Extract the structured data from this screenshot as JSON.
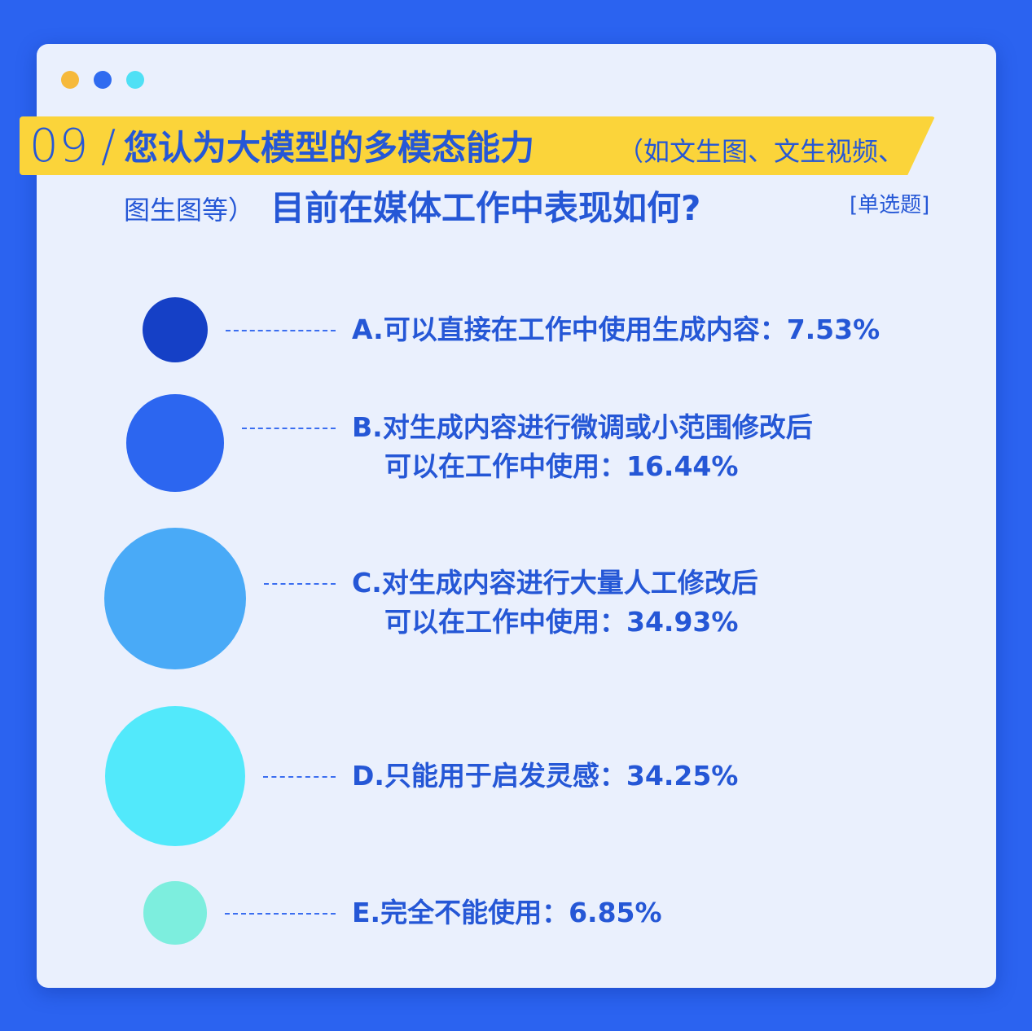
{
  "colors": {
    "page_bg": "#2b63f0",
    "card_bg": "#eaf0fd",
    "band": "#fbd43a",
    "text": "#2557d6",
    "window_dots": [
      "#f6b93b",
      "#2f6bf0",
      "#4fe0f5"
    ]
  },
  "question": {
    "number": "09",
    "slash": "/",
    "title_main": "您认为大模型的多模态能力",
    "title_aside": "（如文生图、文生视频、",
    "title_aside2": "图生图等）",
    "title_main2": "目前在媒体工作中表现如何?",
    "tag": "[单选题]"
  },
  "chart_data": {
    "type": "bubble",
    "categories": [
      "A",
      "B",
      "C",
      "D",
      "E"
    ],
    "values": [
      7.53,
      16.44,
      34.93,
      34.25,
      6.85
    ],
    "unit": "%",
    "colors": [
      "#1540c6",
      "#2c66f0",
      "#49aaf7",
      "#52e9fb",
      "#7deede"
    ],
    "labels": [
      {
        "line1": "A.可以直接在工作中使用生成内容：7.53%",
        "line2": ""
      },
      {
        "line1": "B.对生成内容进行微调或小范围修改后",
        "line2": "可以在工作中使用：16.44%"
      },
      {
        "line1": "C.对生成内容进行大量人工修改后",
        "line2": "可以在工作中使用：34.93%"
      },
      {
        "line1": "D.只能用于启发灵感：34.25%",
        "line2": ""
      },
      {
        "line1": "E.完全不能使用：6.85%",
        "line2": ""
      }
    ]
  }
}
